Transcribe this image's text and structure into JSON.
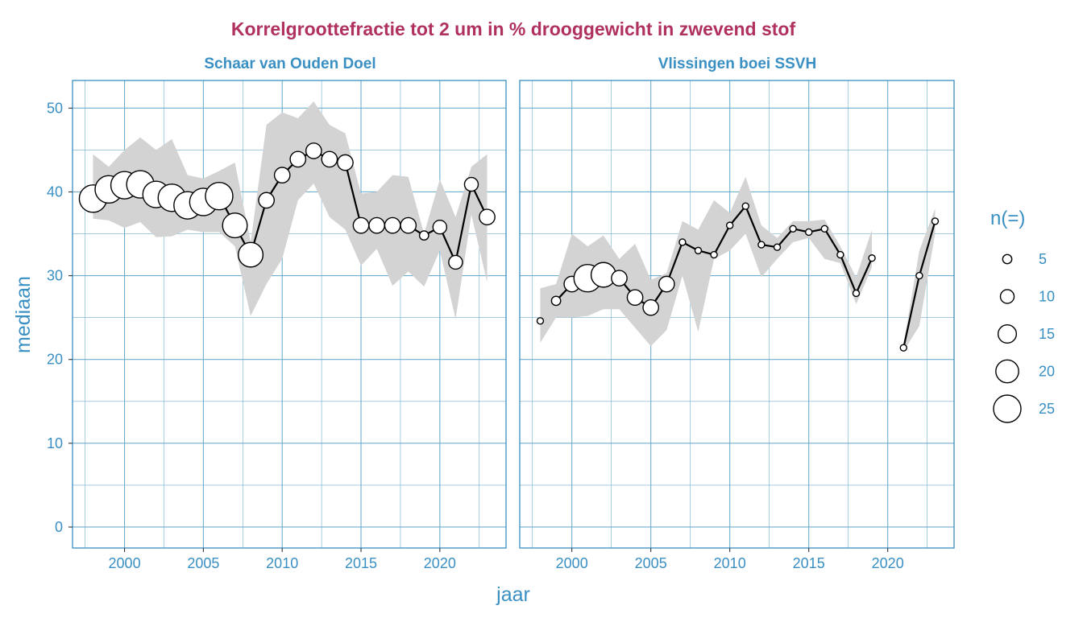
{
  "chart_data": {
    "type": "scatter",
    "title": "Korrelgroottefractie tot 2 um in % drooggewicht in zwevend stof",
    "xlabel": "jaar",
    "ylabel": "mediaan",
    "xlim": [
      1996.7,
      2024.2
    ],
    "ylim": [
      -2.5,
      53.3
    ],
    "x_ticks": [
      2000,
      2005,
      2010,
      2015,
      2020
    ],
    "y_ticks": [
      0,
      10,
      20,
      30,
      40,
      50
    ],
    "legend": {
      "title": "n(=)",
      "position": "right",
      "sizes": [
        5,
        10,
        15,
        20,
        25
      ]
    },
    "panels": [
      {
        "name": "Schaar van Ouden Doel",
        "points": [
          {
            "x": 1998,
            "y": 39.2,
            "n": 25,
            "lo": 36.8,
            "hi": 44.5
          },
          {
            "x": 1999,
            "y": 40.3,
            "n": 25,
            "lo": 36.6,
            "hi": 43.0
          },
          {
            "x": 2000,
            "y": 40.8,
            "n": 25,
            "lo": 35.7,
            "hi": 45.0
          },
          {
            "x": 2001,
            "y": 40.9,
            "n": 25,
            "lo": 36.4,
            "hi": 46.5
          },
          {
            "x": 2002,
            "y": 39.7,
            "n": 24,
            "lo": 34.6,
            "hi": 45.0
          },
          {
            "x": 2003,
            "y": 39.3,
            "n": 25,
            "lo": 34.7,
            "hi": 46.3
          },
          {
            "x": 2004,
            "y": 38.4,
            "n": 25,
            "lo": 35.5,
            "hi": 42.0
          },
          {
            "x": 2005,
            "y": 38.8,
            "n": 25,
            "lo": 35.2,
            "hi": 41.6
          },
          {
            "x": 2006,
            "y": 39.5,
            "n": 25,
            "lo": 35.2,
            "hi": 42.5
          },
          {
            "x": 2007,
            "y": 36.0,
            "n": 22,
            "lo": 33.5,
            "hi": 43.5
          },
          {
            "x": 2008,
            "y": 32.5,
            "n": 22,
            "lo": 25.2,
            "hi": 34.0
          },
          {
            "x": 2009,
            "y": 39.0,
            "n": 12,
            "lo": 29.0,
            "hi": 48.0
          },
          {
            "x": 2010,
            "y": 42.0,
            "n": 12,
            "lo": 32.0,
            "hi": 49.5
          },
          {
            "x": 2011,
            "y": 43.9,
            "n": 12,
            "lo": 39.0,
            "hi": 48.8
          },
          {
            "x": 2012,
            "y": 44.9,
            "n": 12,
            "lo": 41.0,
            "hi": 50.8
          },
          {
            "x": 2013,
            "y": 43.9,
            "n": 12,
            "lo": 37.0,
            "hi": 48.0
          },
          {
            "x": 2014,
            "y": 43.5,
            "n": 12,
            "lo": 35.5,
            "hi": 47.0
          },
          {
            "x": 2015,
            "y": 36.0,
            "n": 12,
            "lo": 31.2,
            "hi": 39.8
          },
          {
            "x": 2016,
            "y": 36.0,
            "n": 12,
            "lo": 33.2,
            "hi": 40.0
          },
          {
            "x": 2017,
            "y": 36.0,
            "n": 12,
            "lo": 28.8,
            "hi": 42.0
          },
          {
            "x": 2018,
            "y": 36.0,
            "n": 12,
            "lo": 30.5,
            "hi": 41.8
          },
          {
            "x": 2019,
            "y": 34.8,
            "n": 5,
            "lo": 28.7,
            "hi": 35.0
          },
          {
            "x": 2020,
            "y": 35.8,
            "n": 10,
            "lo": 33.0,
            "hi": 41.5
          },
          {
            "x": 2021,
            "y": 31.6,
            "n": 10,
            "lo": 24.8,
            "hi": 37.0
          },
          {
            "x": 2022,
            "y": 40.9,
            "n": 10,
            "lo": 37.3,
            "hi": 43.0
          },
          {
            "x": 2023,
            "y": 37.0,
            "n": 12,
            "lo": 29.2,
            "hi": 44.5
          }
        ]
      },
      {
        "name": "Vlissingen boei SSVH",
        "points": [
          {
            "x": 1998,
            "y": 24.6,
            "n": 2,
            "lo": 22.0,
            "hi": 28.5,
            "break": true
          },
          {
            "x": 1999,
            "y": 27.0,
            "n": 5,
            "lo": 25.0,
            "hi": 29.0
          },
          {
            "x": 2000,
            "y": 29.0,
            "n": 12,
            "lo": 25.0,
            "hi": 35.0
          },
          {
            "x": 2001,
            "y": 29.7,
            "n": 25,
            "lo": 25.2,
            "hi": 33.5
          },
          {
            "x": 2002,
            "y": 30.1,
            "n": 22,
            "lo": 26.0,
            "hi": 34.8
          },
          {
            "x": 2003,
            "y": 29.7,
            "n": 12,
            "lo": 26.0,
            "hi": 32.0
          },
          {
            "x": 2004,
            "y": 27.4,
            "n": 12,
            "lo": 23.8,
            "hi": 33.8
          },
          {
            "x": 2005,
            "y": 26.2,
            "n": 12,
            "lo": 21.6,
            "hi": 29.5
          },
          {
            "x": 2006,
            "y": 29.0,
            "n": 12,
            "lo": 23.5,
            "hi": 30.3
          },
          {
            "x": 2007,
            "y": 34.0,
            "n": 2,
            "lo": 30.0,
            "hi": 36.5
          },
          {
            "x": 2008,
            "y": 33.0,
            "n": 2,
            "lo": 23.3,
            "hi": 35.5
          },
          {
            "x": 2009,
            "y": 32.5,
            "n": 2,
            "lo": 32.0,
            "hi": 39.0
          },
          {
            "x": 2010,
            "y": 36.0,
            "n": 2,
            "lo": 33.0,
            "hi": 37.5
          },
          {
            "x": 2011,
            "y": 38.3,
            "n": 2,
            "lo": 35.0,
            "hi": 41.8
          },
          {
            "x": 2012,
            "y": 33.7,
            "n": 2,
            "lo": 29.8,
            "hi": 36.0
          },
          {
            "x": 2013,
            "y": 33.4,
            "n": 2,
            "lo": 32.0,
            "hi": 34.5
          },
          {
            "x": 2014,
            "y": 35.6,
            "n": 2,
            "lo": 34.0,
            "hi": 36.5
          },
          {
            "x": 2015,
            "y": 35.2,
            "n": 2,
            "lo": 34.5,
            "hi": 36.5
          },
          {
            "x": 2016,
            "y": 35.6,
            "n": 2,
            "lo": 32.0,
            "hi": 36.7
          },
          {
            "x": 2017,
            "y": 32.5,
            "n": 2,
            "lo": 31.5,
            "hi": 33.5
          },
          {
            "x": 2018,
            "y": 27.9,
            "n": 2,
            "lo": 26.6,
            "hi": 29.8
          },
          {
            "x": 2019,
            "y": 32.1,
            "n": 2,
            "lo": 31.0,
            "hi": 35.5
          },
          {
            "x": 2021,
            "y": 21.4,
            "n": 2,
            "lo": 21.0,
            "hi": 21.8
          },
          {
            "x": 2022,
            "y": 30.0,
            "n": 2,
            "lo": 24.0,
            "hi": 33.0
          },
          {
            "x": 2023,
            "y": 36.5,
            "n": 2,
            "lo": 35.0,
            "hi": 38.0
          }
        ]
      }
    ]
  }
}
